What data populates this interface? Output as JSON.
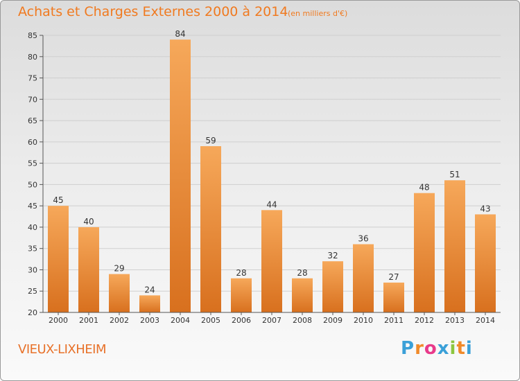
{
  "header": {
    "title": "Achats et Charges Externes 2000 à 2014",
    "subtitle": "(en milliers d'€)"
  },
  "footer": {
    "location": "VIEUX-LIXHEIM",
    "logo_letters": [
      "P",
      "r",
      "o",
      "x",
      "i",
      "t",
      "i"
    ],
    "logo_colors": [
      "#3aa0d8",
      "#f08a2a",
      "#e83a8a",
      "#3aa0d8",
      "#8cc63f",
      "#f08a2a",
      "#3aa0d8"
    ]
  },
  "colors": {
    "bar_light": "#f6a85a",
    "bar_dark": "#d8701e",
    "grid": "#cfcfcf",
    "axis": "#555555",
    "text": "#333333"
  },
  "chart_data": {
    "type": "bar",
    "title": "Achats et Charges Externes 2000 à 2014",
    "categories": [
      "2000",
      "2001",
      "2002",
      "2003",
      "2004",
      "2005",
      "2006",
      "2007",
      "2008",
      "2009",
      "2010",
      "2011",
      "2012",
      "2013",
      "2014"
    ],
    "values": [
      45,
      40,
      29,
      24,
      84,
      59,
      28,
      44,
      28,
      32,
      36,
      27,
      48,
      51,
      43
    ],
    "ylim": [
      20,
      85
    ],
    "yticks": [
      20,
      25,
      30,
      35,
      40,
      45,
      50,
      55,
      60,
      65,
      70,
      75,
      80,
      85
    ],
    "grid": true
  }
}
